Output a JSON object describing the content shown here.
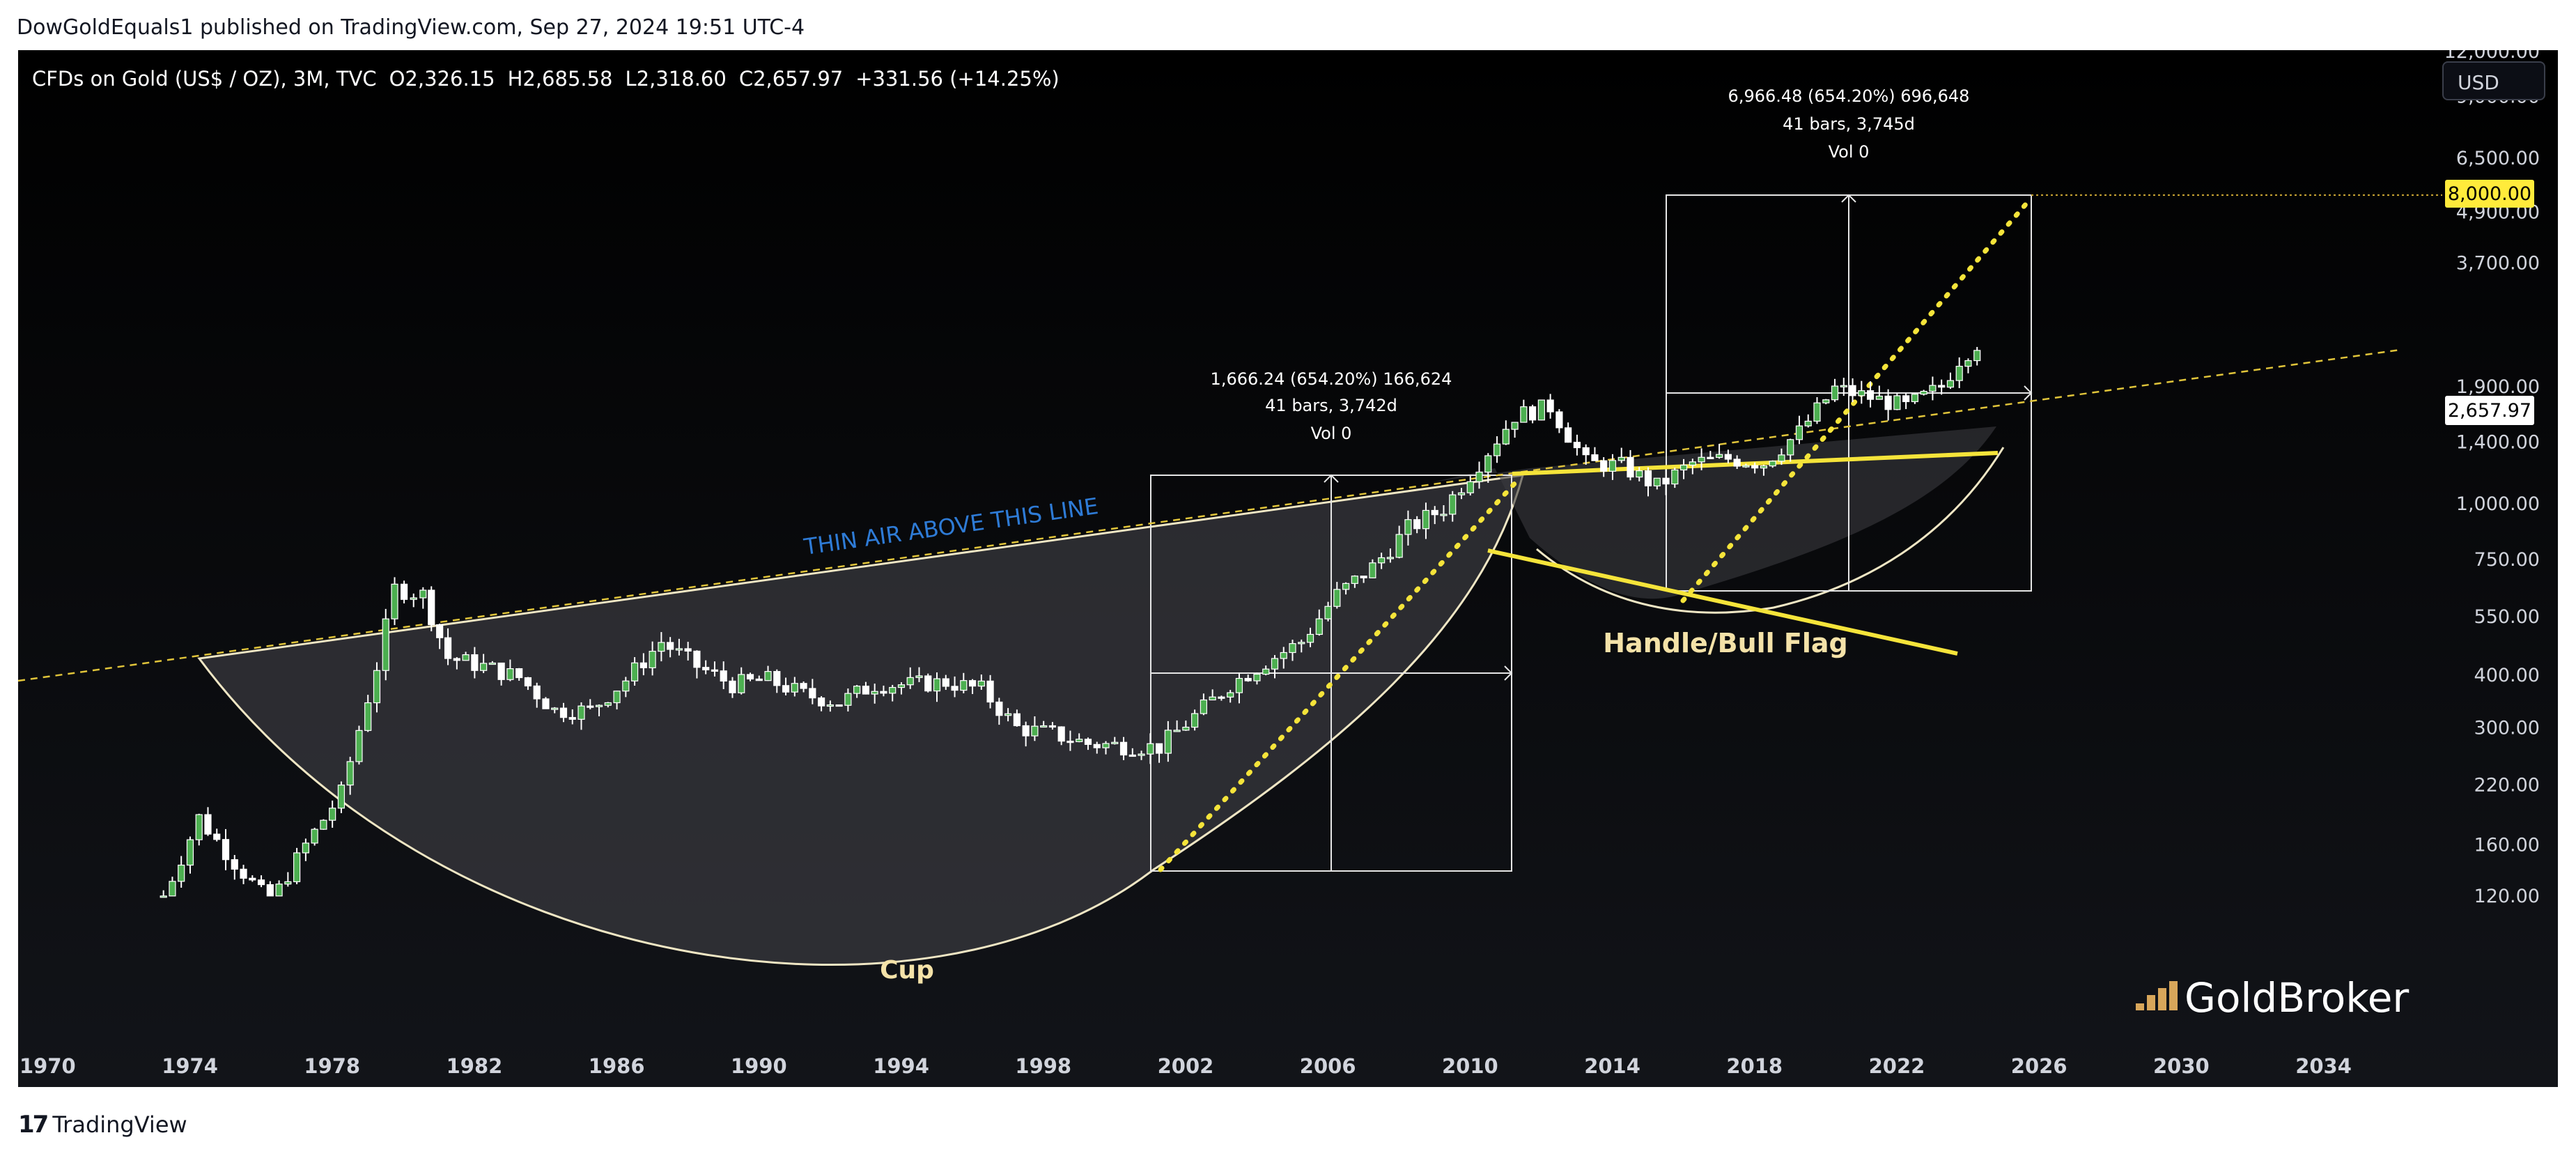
{
  "header": {
    "publisher": "DowGoldEquals1 published on TradingView.com, Sep 27, 2024 19:51 UTC-4"
  },
  "symbol": {
    "name": "CFDs on Gold (US$ / OZ), 3M, TVC",
    "open": "O2,326.15",
    "high": "H2,685.58",
    "low": "L2,318.60",
    "close": "C2,657.97",
    "change": "+331.56 (+14.25%)"
  },
  "currency_button": "USD",
  "footer": {
    "logo_text": "TradingView"
  },
  "watermark": "GoldBroker",
  "colors": {
    "background": "#000000",
    "candle_up": "#ffffff",
    "candle_down": "#ffffff",
    "cup_fill": "#3a3b40",
    "trend_yellow": "#f5e43a",
    "thin_air_text": "#2e7bd6",
    "label_text": "#f4e2a8",
    "axis_text": "#d1d4dc",
    "goldbroker_accent": "#d8a65a"
  },
  "chart_data": {
    "type": "candlestick",
    "scale": "log",
    "ylim": [
      110,
      14000
    ],
    "xlim": [
      1970,
      2038
    ],
    "x_ticks": [
      "1970",
      "1974",
      "1978",
      "1982",
      "1986",
      "1990",
      "1994",
      "1998",
      "2002",
      "2006",
      "2010",
      "2014",
      "2018",
      "2022",
      "2026",
      "2030",
      "2034"
    ],
    "y_ticks": [
      "12,000.00",
      "9,000.00",
      "6,500.00",
      "4,900.00",
      "3,700.00",
      "1,900.00",
      "1,400.00",
      "1,000.00",
      "750.00",
      "550.00",
      "400.00",
      "300.00",
      "220.00",
      "160.00",
      "120.00"
    ],
    "price_markers": [
      {
        "label": "8,000.00",
        "value": 8000,
        "style": "highlight"
      },
      {
        "label": "2,657.97",
        "value": 2657.97,
        "style": "current"
      }
    ],
    "candles_anchor_closes": [
      [
        1973.5,
        120
      ],
      [
        1974.5,
        185
      ],
      [
        1975.5,
        145
      ],
      [
        1976.5,
        115
      ],
      [
        1977.5,
        160
      ],
      [
        1978.5,
        210
      ],
      [
        1979.5,
        420
      ],
      [
        1980.0,
        640
      ],
      [
        1980.8,
        620
      ],
      [
        1981.5,
        440
      ],
      [
        1982.5,
        420
      ],
      [
        1983.5,
        395
      ],
      [
        1984.5,
        330
      ],
      [
        1985.5,
        330
      ],
      [
        1986.5,
        390
      ],
      [
        1987.5,
        480
      ],
      [
        1988.5,
        420
      ],
      [
        1989.5,
        380
      ],
      [
        1990.5,
        390
      ],
      [
        1991.5,
        360
      ],
      [
        1992.5,
        345
      ],
      [
        1993.5,
        380
      ],
      [
        1994.5,
        380
      ],
      [
        1995.5,
        385
      ],
      [
        1996.5,
        370
      ],
      [
        1997.5,
        300
      ],
      [
        1998.5,
        290
      ],
      [
        1999.5,
        275
      ],
      [
        2000.5,
        272
      ],
      [
        2001.5,
        270
      ],
      [
        2002.5,
        320
      ],
      [
        2003.5,
        380
      ],
      [
        2004.5,
        430
      ],
      [
        2005.5,
        480
      ],
      [
        2006.5,
        620
      ],
      [
        2007.5,
        720
      ],
      [
        2008.5,
        880
      ],
      [
        2009.5,
        980
      ],
      [
        2010.5,
        1250
      ],
      [
        2011.5,
        1620
      ],
      [
        2012.5,
        1700
      ],
      [
        2013.5,
        1250
      ],
      [
        2014.5,
        1230
      ],
      [
        2015.5,
        1100
      ],
      [
        2016.5,
        1250
      ],
      [
        2017.5,
        1280
      ],
      [
        2018.5,
        1250
      ],
      [
        2019.5,
        1480
      ],
      [
        2020.5,
        1880
      ],
      [
        2021.5,
        1790
      ],
      [
        2022.5,
        1700
      ],
      [
        2023.5,
        1900
      ],
      [
        2024.0,
        2200
      ],
      [
        2024.5,
        2400
      ],
      [
        2024.75,
        2657.97
      ]
    ],
    "annotations": [
      {
        "text": "THIN AIR ABOVE THIS LINE"
      },
      {
        "text": "Cup"
      },
      {
        "text": "Handle/Bull Flag"
      }
    ],
    "measurements": [
      {
        "line1": "1,666.24 (654.20%) 166,624",
        "line2": "41 bars, 3,742d",
        "line3": "Vol 0"
      },
      {
        "line1": "6,966.48 (654.20%) 696,648",
        "line2": "41 bars, 3,745d",
        "line3": "Vol 0"
      }
    ]
  }
}
